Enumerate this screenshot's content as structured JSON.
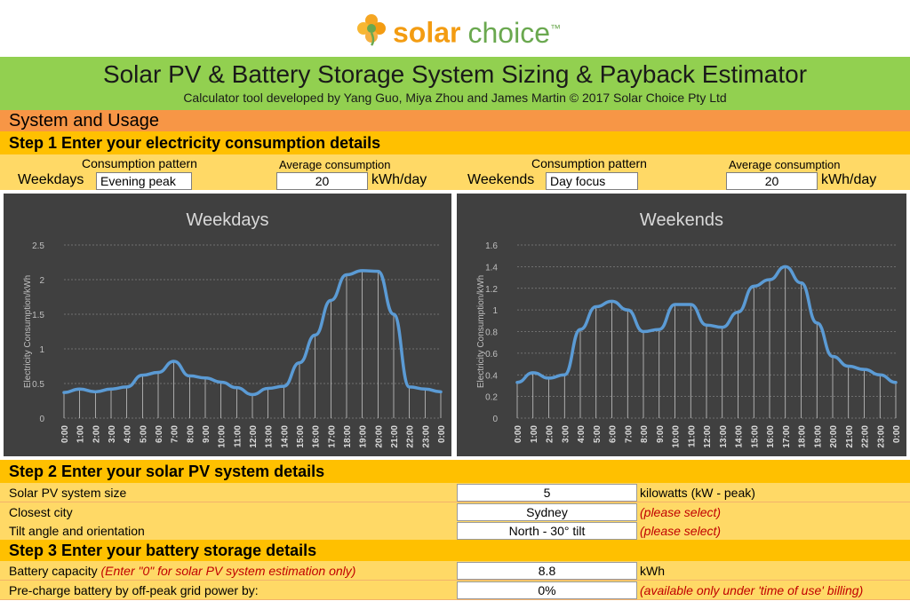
{
  "logo": {
    "word1": "solar",
    "word2": "choice",
    "tm": "™"
  },
  "header": {
    "title": "Solar PV & Battery Storage System Sizing & Payback Estimator",
    "subtitle": "Calculator tool developed by Yang Guo, Miya Zhou and James Martin © 2017 Solar Choice Pty Ltd"
  },
  "section": {
    "title": "System and Usage"
  },
  "step1": {
    "title": "Step 1 Enter your electricity consumption details",
    "weekdays": {
      "label": "Weekdays",
      "pattern_header": "Consumption pattern",
      "pattern_value": "Evening peak",
      "avg_header": "Average consumption",
      "avg_value": "20",
      "unit": "kWh/day"
    },
    "weekends": {
      "label": "Weekends",
      "pattern_header": "Consumption pattern",
      "pattern_value": "Day focus",
      "avg_header": "Average consumption",
      "avg_value": "20",
      "unit": "kWh/day"
    }
  },
  "chart_data": [
    {
      "type": "line",
      "title": "Weekdays",
      "xlabel": "",
      "ylabel": "Electricity Consumption/kWh",
      "ylim": [
        0,
        2.5
      ],
      "yticks": [
        "0",
        "0.5",
        "1",
        "1.5",
        "2",
        "2.5"
      ],
      "categories": [
        "0:00",
        "1:00",
        "2:00",
        "3:00",
        "4:00",
        "5:00",
        "6:00",
        "7:00",
        "8:00",
        "9:00",
        "10:00",
        "11:00",
        "12:00",
        "13:00",
        "14:00",
        "15:00",
        "16:00",
        "17:00",
        "18:00",
        "19:00",
        "20:00",
        "21:00",
        "22:00",
        "23:00",
        "0:00"
      ],
      "values": [
        0.37,
        0.42,
        0.38,
        0.42,
        0.45,
        0.62,
        0.66,
        0.82,
        0.61,
        0.58,
        0.52,
        0.44,
        0.34,
        0.43,
        0.46,
        0.8,
        1.2,
        1.7,
        2.07,
        2.13,
        2.12,
        1.5,
        0.45,
        0.42,
        0.38
      ],
      "grid": true,
      "color": "#5b9bd5"
    },
    {
      "type": "line",
      "title": "Weekends",
      "xlabel": "",
      "ylabel": "Electricity Consumption/kWh",
      "ylim": [
        0,
        1.6
      ],
      "yticks": [
        "0",
        "0.2",
        "0.4",
        "0.6",
        "0.8",
        "1",
        "1.2",
        "1.4",
        "1.6"
      ],
      "categories": [
        "0:00",
        "1:00",
        "2:00",
        "3:00",
        "4:00",
        "5:00",
        "6:00",
        "7:00",
        "8:00",
        "9:00",
        "10:00",
        "11:00",
        "12:00",
        "13:00",
        "14:00",
        "15:00",
        "16:00",
        "17:00",
        "18:00",
        "19:00",
        "20:00",
        "21:00",
        "22:00",
        "23:00",
        "0:00"
      ],
      "values": [
        0.33,
        0.42,
        0.37,
        0.4,
        0.82,
        1.03,
        1.08,
        1.0,
        0.8,
        0.82,
        1.05,
        1.05,
        0.86,
        0.84,
        0.98,
        1.22,
        1.28,
        1.4,
        1.25,
        0.88,
        0.57,
        0.48,
        0.45,
        0.4,
        0.33
      ],
      "grid": true,
      "color": "#5b9bd5"
    }
  ],
  "step2": {
    "title": "Step 2 Enter your solar PV system details",
    "rows": [
      {
        "label": "Solar PV system size",
        "value": "5",
        "unit": "kilowatts (kW - peak)",
        "note": ""
      },
      {
        "label": "Closest city",
        "value": "Sydney",
        "unit": "",
        "note": "(please select)"
      },
      {
        "label": "Tilt angle and orientation",
        "value": "North - 30° tilt",
        "unit": "",
        "note": "(please select)"
      }
    ]
  },
  "step3": {
    "title": "Step 3 Enter your battery storage details",
    "rows": [
      {
        "label": "Battery capacity",
        "label_note": "(Enter \"0\" for solar PV system estimation only)",
        "value": "8.8",
        "unit": "kWh",
        "note": ""
      },
      {
        "label": "Pre-charge battery by off-peak grid power by:",
        "label_note": "",
        "value": "0%",
        "unit": "",
        "note": "(available only under 'time of use' billing)"
      }
    ]
  },
  "colors": {
    "brand_green": "#92d050",
    "orange": "#f79646",
    "gold": "#ffc000",
    "light_gold": "#ffd966",
    "chart_bg": "#404040",
    "series": "#5b9bd5",
    "note_red": "#c00000"
  }
}
